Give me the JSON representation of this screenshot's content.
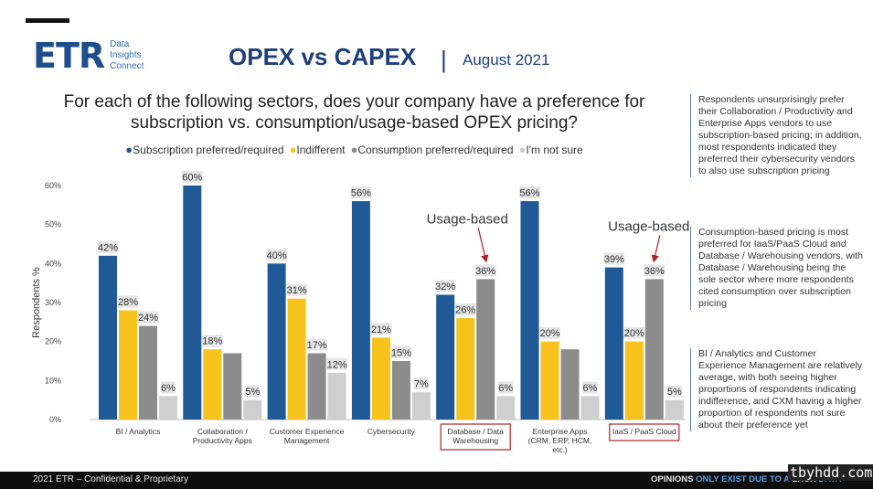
{
  "header": {
    "logo_text": "ETR",
    "logo_sub": [
      "Data",
      "Insights",
      "Connect"
    ],
    "title": "OPEX vs CAPEX",
    "separator": "|",
    "date": "August 2021"
  },
  "question": "For each of the following sectors, does your company have a preference for subscription vs. consumption/usage-based OPEX pricing?",
  "colors": {
    "subscription": "#1f5a96",
    "indifferent": "#f7c21b",
    "consumption": "#8c8c8c",
    "not_sure": "#cfcfcf",
    "highlight_box": "#b22222",
    "arrow": "#b22222"
  },
  "notes": [
    "Respondents unsurprisingly prefer their Collaboration / Productivity and Enterprise Apps vendors to use subscription-based pricing; in addition, most respondents indicated they preferred their cybersecurity vendors to also use subscription pricing",
    "Consumption-based pricing is most preferred for IaaS/PaaS Cloud and Database / Warehousing vendors, with Database / Warehousing being the sole sector where more respondents cited consumption over subscription pricing",
    "BI / Analytics  and Customer Experience Management are relatively average, with both seeing higher proportions of respondents indicating indifference, and CXM having a higher proportion of respondents not sure about their preference yet"
  ],
  "footer": {
    "left": "2021 ETR – Confidential & Proprietary",
    "right_a": "OPINIONS ",
    "right_b": "ONLY EXIST DUE TO A",
    "right_c": " LACK ",
    "right_d": "DATA",
    "watermark": "tbyhdd.com"
  },
  "chart_data": {
    "type": "bar",
    "ylabel": "Respondents %",
    "ylim": [
      0,
      60
    ],
    "yticks": [
      0,
      10,
      20,
      30,
      40,
      50,
      60
    ],
    "ytick_labels": [
      "0%",
      "10%",
      "20%",
      "30%",
      "40%",
      "50%",
      "60%"
    ],
    "grid": false,
    "legend_position": "top",
    "legend_bullet": "●",
    "categories": [
      [
        "BI / Analytics"
      ],
      [
        "Collaboration /",
        "Productivity Apps"
      ],
      [
        "Customer Experience",
        "Management"
      ],
      [
        "Cybersecurity"
      ],
      [
        "Database / Data",
        "Warehousing"
      ],
      [
        "Enterprise Apps",
        "(CRM, ERP, HCM,",
        "etc.)"
      ],
      [
        "IaaS / PaaS Cloud"
      ]
    ],
    "highlighted_categories": [
      4,
      6
    ],
    "series": [
      {
        "name": "Subscription preferred/required",
        "color": "#1f5a96",
        "values": [
          42,
          60,
          40,
          56,
          32,
          56,
          39
        ],
        "labels": [
          "42%",
          "60%",
          "40%",
          "56%",
          "32%",
          "56%",
          "39%"
        ]
      },
      {
        "name": "Indifferent",
        "color": "#f7c21b",
        "values": [
          28,
          18,
          31,
          21,
          26,
          20,
          20
        ],
        "labels": [
          "28%",
          "18%",
          "31%",
          "21%",
          "26%",
          "20%",
          "20%"
        ]
      },
      {
        "name": "Consumption preferred/required",
        "color": "#8c8c8c",
        "values": [
          24,
          17,
          17,
          15,
          36,
          18,
          36
        ],
        "labels": [
          "24%",
          "",
          "17%",
          "15%",
          "36%",
          "",
          "36%"
        ]
      },
      {
        "name": "I'm not sure",
        "color": "#cfcfcf",
        "values": [
          6,
          5,
          12,
          7,
          6,
          6,
          5
        ],
        "labels": [
          "6%",
          "5%",
          "12%",
          "7%",
          "6%",
          "6%",
          "5%"
        ]
      }
    ],
    "annotations": [
      {
        "text": "Usage-based",
        "category": 4,
        "series": 2
      },
      {
        "text": "Usage-based",
        "category": 6,
        "series": 2
      }
    ]
  }
}
